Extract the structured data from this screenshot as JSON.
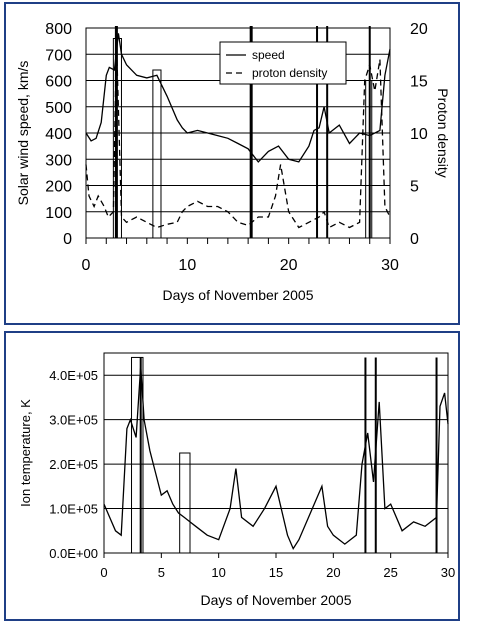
{
  "chart_data": [
    {
      "type": "line",
      "xlabel": "Days of November 2005",
      "ylabel": "Solar wind speed, km/s",
      "y2label": "Proton density",
      "xlim": [
        0,
        30
      ],
      "ylim": [
        0,
        800
      ],
      "y2lim": [
        0,
        20
      ],
      "x_ticks": [
        "0",
        "10",
        "20",
        "30"
      ],
      "y_ticks": [
        "0",
        "100",
        "200",
        "300",
        "400",
        "500",
        "600",
        "700",
        "800"
      ],
      "y2_ticks": [
        "0",
        "5",
        "10",
        "15",
        "20"
      ],
      "grid": true,
      "legend": "top-right",
      "series": [
        {
          "name": "speed",
          "style": "solid",
          "axis": "left",
          "x": [
            0,
            0.5,
            1,
            1.5,
            2,
            2.3,
            2.8,
            3.2,
            3.5,
            4,
            5,
            6,
            7,
            8,
            9,
            9.5,
            10,
            11,
            12,
            13,
            14,
            15,
            16,
            17,
            18,
            19,
            20,
            21,
            22,
            22.5,
            23,
            23.5,
            24,
            25,
            26,
            26.5,
            27,
            28,
            29,
            29.5,
            30
          ],
          "y": [
            400,
            370,
            380,
            440,
            620,
            650,
            640,
            780,
            700,
            660,
            620,
            610,
            620,
            540,
            450,
            420,
            400,
            410,
            400,
            390,
            380,
            360,
            340,
            290,
            330,
            350,
            300,
            290,
            350,
            410,
            420,
            500,
            400,
            430,
            360,
            380,
            400,
            390,
            410,
            620,
            720
          ]
        },
        {
          "name": "proton density",
          "style": "dashed",
          "axis": "right",
          "x": [
            0,
            0.3,
            0.8,
            1.2,
            1.8,
            2.2,
            2.7,
            3,
            3.5,
            4,
            5,
            6,
            7,
            8,
            9,
            9.5,
            10,
            11,
            12,
            13,
            14,
            15,
            16,
            17,
            18,
            18.7,
            19.2,
            20,
            21,
            22,
            23,
            23.5,
            24,
            25,
            26,
            27,
            27.5,
            28,
            28.5,
            29,
            29.5,
            30
          ],
          "y": [
            7,
            4,
            3,
            4,
            3,
            2,
            2.5,
            19,
            2,
            1.5,
            2,
            1.5,
            1,
            1.3,
            1.5,
            2.5,
            3,
            3.5,
            3,
            3,
            2.5,
            1.5,
            1.2,
            2,
            2,
            4,
            7,
            2.5,
            1,
            1.5,
            2,
            2.5,
            1,
            1.5,
            1,
            1.5,
            15,
            16.5,
            14,
            17,
            3,
            2
          ]
        }
      ]
    },
    {
      "type": "line",
      "xlabel": "Days of November 2005",
      "ylabel": "Ion temperature, K",
      "xlim": [
        0,
        30
      ],
      "ylim": [
        0,
        450000
      ],
      "x_ticks": [
        "0",
        "5",
        "10",
        "15",
        "20",
        "25",
        "30"
      ],
      "y_ticks": [
        "0.0E+00",
        "1.0E+05",
        "2.0E+05",
        "3.0E+05",
        "4.0E+05"
      ],
      "grid": true,
      "series": [
        {
          "style": "solid",
          "x": [
            0,
            0.5,
            1,
            1.5,
            2,
            2.3,
            2.8,
            3.2,
            3.5,
            4,
            4.5,
            5,
            5.5,
            6,
            6.5,
            7,
            7.5,
            8,
            9,
            10,
            11,
            11.5,
            12,
            13,
            14,
            15,
            16,
            16.5,
            17,
            18,
            19,
            19.5,
            20,
            21,
            22,
            22.5,
            23,
            23.5,
            24,
            24.5,
            25,
            26,
            27,
            28,
            29,
            29.3,
            29.7,
            30
          ],
          "y": [
            110000,
            80000,
            50000,
            40000,
            280000,
            300000,
            260000,
            420000,
            300000,
            230000,
            180000,
            130000,
            140000,
            110000,
            90000,
            80000,
            70000,
            60000,
            40000,
            30000,
            100000,
            190000,
            80000,
            60000,
            100000,
            150000,
            40000,
            10000,
            30000,
            90000,
            150000,
            60000,
            40000,
            20000,
            40000,
            200000,
            270000,
            160000,
            340000,
            100000,
            110000,
            50000,
            70000,
            60000,
            80000,
            330000,
            360000,
            290000
          ]
        }
      ]
    }
  ]
}
